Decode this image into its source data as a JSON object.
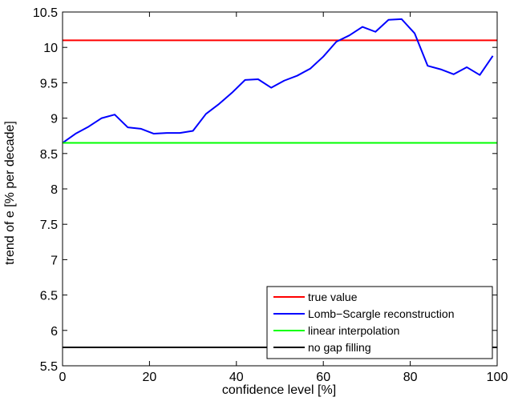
{
  "chart_data": {
    "type": "line",
    "title": "",
    "xlabel": "confidence level [%]",
    "ylabel": "trend of e [% per decade]",
    "xlim": [
      0,
      100
    ],
    "ylim": [
      5.5,
      10.5
    ],
    "x_ticks": [
      0,
      20,
      40,
      60,
      80,
      100
    ],
    "y_ticks": [
      5.5,
      6,
      6.5,
      7,
      7.5,
      8,
      8.5,
      9,
      9.5,
      10,
      10.5
    ],
    "grid": false,
    "legend_position": "bottom-right",
    "series": [
      {
        "name": "true value",
        "color": "#ff0000",
        "x": [
          0,
          100
        ],
        "y": [
          10.1,
          10.1
        ]
      },
      {
        "name": "Lomb−Scargle reconstruction",
        "color": "#0000ff",
        "x": [
          0,
          3,
          6,
          9,
          12,
          15,
          18,
          21,
          24,
          27,
          30,
          33,
          36,
          39,
          42,
          45,
          48,
          51,
          54,
          57,
          60,
          63,
          66,
          69,
          72,
          75,
          78,
          81,
          84,
          87,
          90,
          93,
          96,
          99
        ],
        "y": [
          8.65,
          8.78,
          8.88,
          9.0,
          9.05,
          8.87,
          8.85,
          8.78,
          8.79,
          8.79,
          8.82,
          9.06,
          9.2,
          9.36,
          9.54,
          9.55,
          9.43,
          9.53,
          9.6,
          9.7,
          9.87,
          10.08,
          10.17,
          10.29,
          10.22,
          10.39,
          10.4,
          10.2,
          9.74,
          9.69,
          9.62,
          9.72,
          9.61,
          9.88
        ]
      },
      {
        "name": "linear interpolation",
        "color": "#00ff00",
        "x": [
          0,
          100
        ],
        "y": [
          8.65,
          8.65
        ]
      },
      {
        "name": "no gap filling",
        "color": "#000000",
        "x": [
          0,
          100
        ],
        "y": [
          5.76,
          5.76
        ]
      }
    ]
  }
}
